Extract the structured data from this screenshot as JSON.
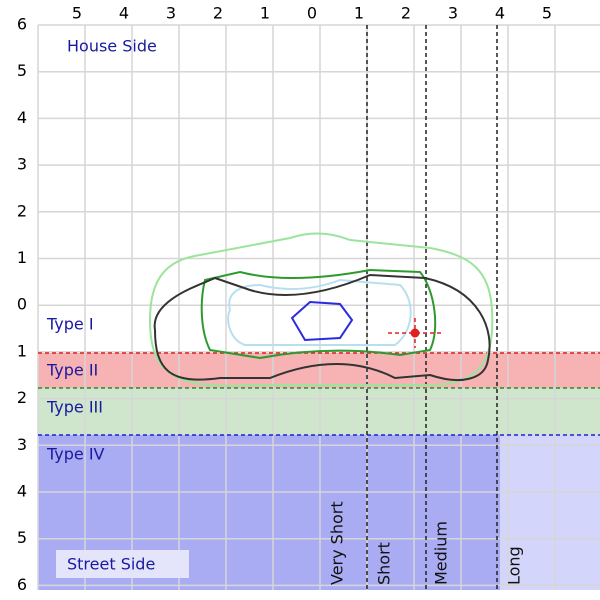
{
  "top_axis": [
    "5",
    "4",
    "3",
    "2",
    "1",
    "0",
    "1",
    "2",
    "3",
    "4",
    "5"
  ],
  "left_axis": [
    "6",
    "5",
    "4",
    "3",
    "2",
    "1",
    "0",
    "1",
    "2",
    "3",
    "4",
    "5",
    "6"
  ],
  "house_side": "House Side",
  "street_side": "Street Side",
  "types": [
    "Type I",
    "Type II",
    "Type III",
    "Type IV"
  ],
  "distances": [
    "Very Short",
    "Short",
    "Medium",
    "Long"
  ]
}
